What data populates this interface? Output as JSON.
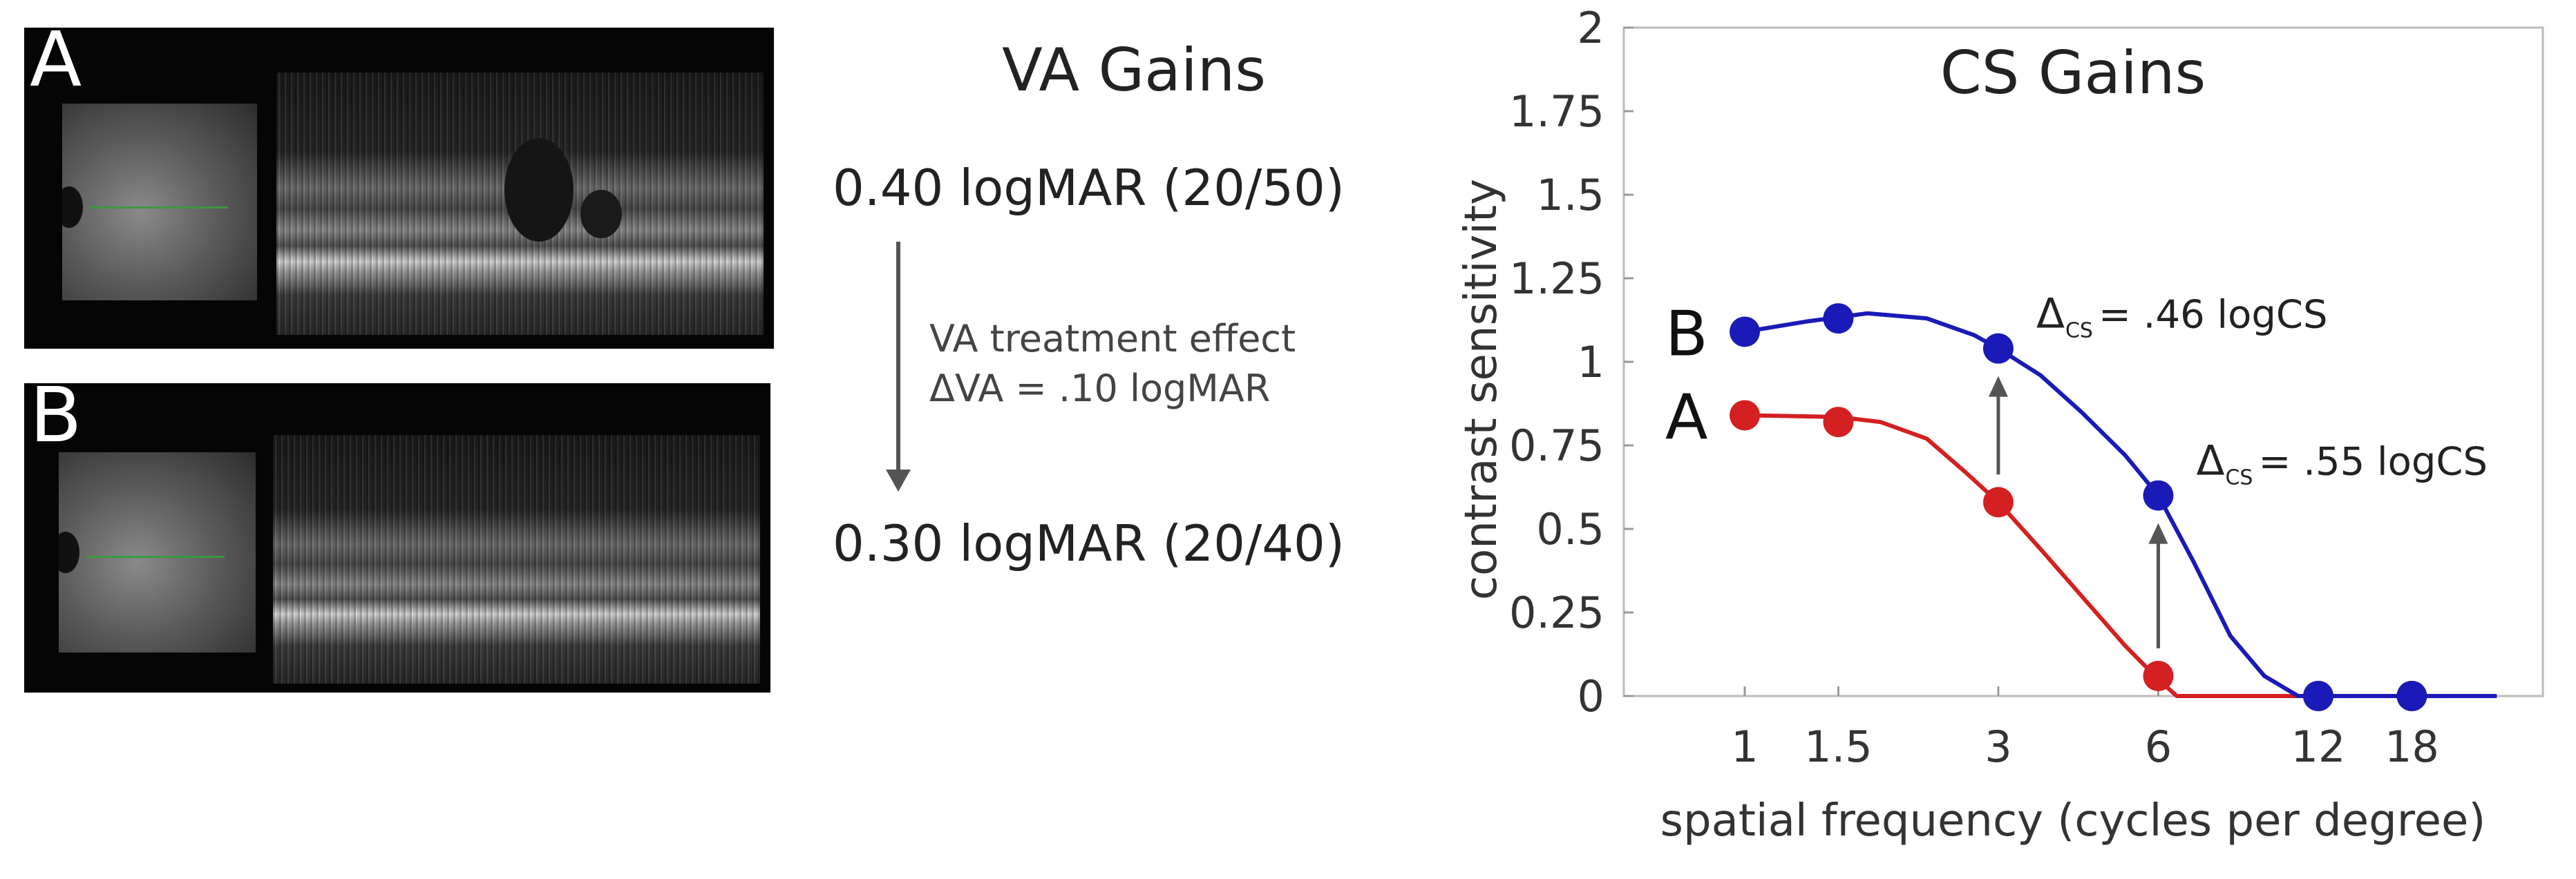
{
  "panels": {
    "a_label": "A",
    "b_label": "B"
  },
  "va": {
    "title": "VA Gains",
    "before": "0.40 logMAR (20/50)",
    "after": "0.30 logMAR (20/40)",
    "effect_line1": "VA treatment effect",
    "effect_line2": "ΔVA = .10 logMAR"
  },
  "chart_data": {
    "type": "line",
    "title": "CS Gains",
    "xlabel": "spatial frequency (cycles per degree)",
    "ylabel": "contrast sensitivity",
    "x_ticks": [
      1,
      1.5,
      3,
      6,
      12,
      18
    ],
    "ylim": [
      0,
      2
    ],
    "y_ticks": [
      "0",
      "0.25",
      "0.5",
      "0.75",
      "1",
      "1.25",
      "1.5",
      "1.75",
      "2"
    ],
    "y_tick_values": [
      0,
      0.25,
      0.5,
      0.75,
      1,
      1.25,
      1.5,
      1.75,
      2
    ],
    "series": [
      {
        "name": "A",
        "color": "#d42020",
        "points": [
          [
            1,
            0.84
          ],
          [
            1.5,
            0.82
          ],
          [
            3,
            0.58
          ],
          [
            6,
            0.06
          ],
          [
            12,
            0
          ],
          [
            18,
            0
          ]
        ],
        "curve": [
          [
            1,
            0.84
          ],
          [
            1.5,
            0.835
          ],
          [
            1.8,
            0.82
          ],
          [
            2.2,
            0.77
          ],
          [
            2.6,
            0.67
          ],
          [
            3,
            0.58
          ],
          [
            3.6,
            0.44
          ],
          [
            4.3,
            0.3
          ],
          [
            5.2,
            0.15
          ],
          [
            6,
            0.05
          ],
          [
            6.5,
            0
          ],
          [
            12,
            0
          ],
          [
            18,
            0
          ],
          [
            26,
            0
          ]
        ]
      },
      {
        "name": "B",
        "color": "#1a1ab8",
        "points": [
          [
            1,
            1.09
          ],
          [
            1.5,
            1.13
          ],
          [
            3,
            1.04
          ],
          [
            6,
            0.6
          ],
          [
            12,
            0
          ],
          [
            18,
            0
          ]
        ],
        "curve": [
          [
            1,
            1.09
          ],
          [
            1.3,
            1.12
          ],
          [
            1.7,
            1.145
          ],
          [
            2.2,
            1.13
          ],
          [
            2.7,
            1.08
          ],
          [
            3,
            1.04
          ],
          [
            3.6,
            0.96
          ],
          [
            4.3,
            0.85
          ],
          [
            5.2,
            0.72
          ],
          [
            6,
            0.6
          ],
          [
            7,
            0.4
          ],
          [
            8.2,
            0.18
          ],
          [
            9.5,
            0.06
          ],
          [
            11,
            0
          ],
          [
            12,
            0
          ],
          [
            18,
            0
          ],
          [
            26,
            0
          ]
        ]
      }
    ],
    "annotations": [
      {
        "label": "Δ",
        "sub": "CS",
        "text": "= .46 logCS",
        "x": 3
      },
      {
        "label": "Δ",
        "sub": "CS",
        "text": "= .55 logCS",
        "x": 6
      }
    ]
  }
}
